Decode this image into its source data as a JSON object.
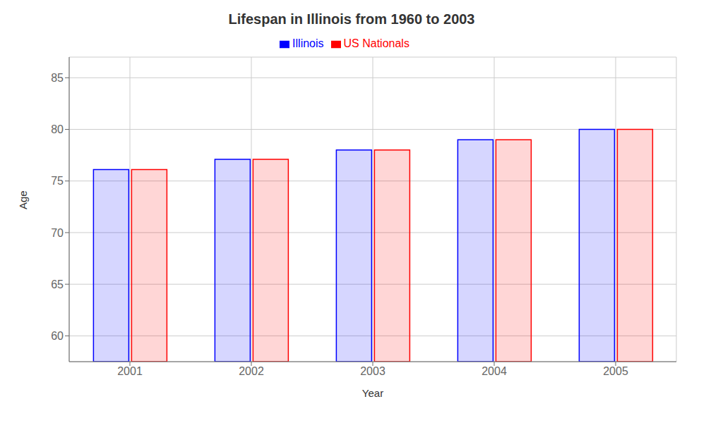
{
  "chart_data": {
    "type": "bar",
    "title": "Lifespan in Illinois from 1960 to 2003",
    "x_label": "Year",
    "y_label": "Age",
    "categories": [
      "2001",
      "2002",
      "2003",
      "2004",
      "2005"
    ],
    "series": [
      {
        "name": "Illinois",
        "color": "#0000ff",
        "values": [
          76.1,
          77.1,
          78.0,
          79.0,
          80.0
        ]
      },
      {
        "name": "US Nationals",
        "color": "#ff0000",
        "values": [
          76.1,
          77.1,
          78.0,
          79.0,
          80.0
        ]
      }
    ],
    "ylim": [
      57.5,
      87
    ],
    "yticks": [
      60,
      65,
      70,
      75,
      80,
      85
    ],
    "grid": true,
    "legend": "top"
  }
}
